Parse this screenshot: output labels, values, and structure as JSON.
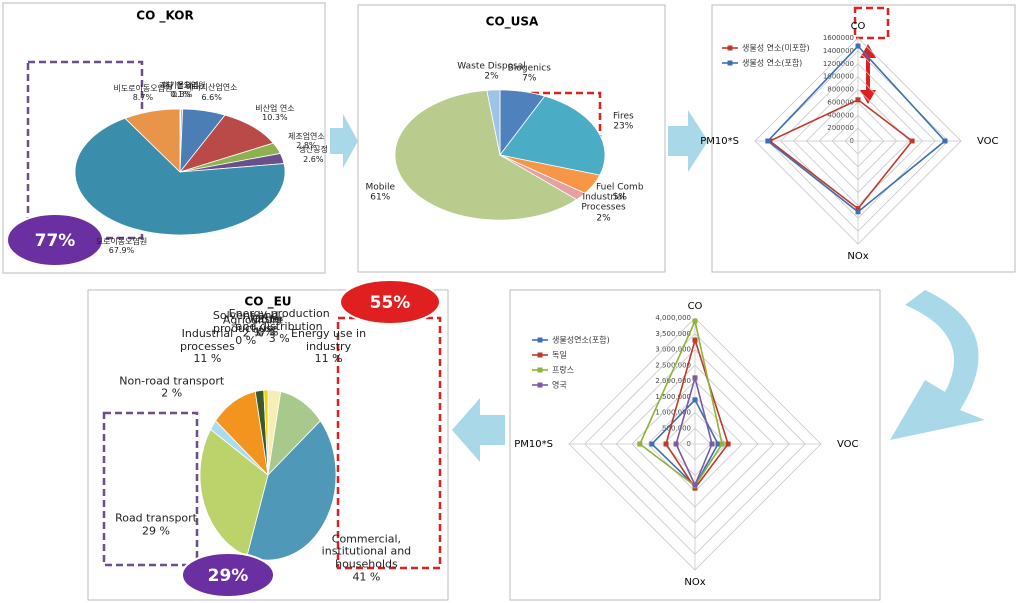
{
  "chart_data": [
    {
      "type": "pie",
      "title": "CO _KOR",
      "categories": [
        "폐기물처리",
        "기타 면오염원",
        "에너지산업연소",
        "비산업 연소",
        "제조업연소",
        "생산공정",
        "도로이동오염원",
        "비도로이동오염원"
      ],
      "values": [
        0.1,
        0.3,
        6.6,
        10.3,
        2.8,
        2.6,
        67.9,
        8.7
      ],
      "value_labels": [
        "0.1%",
        "0.3%",
        "6.6%",
        "10.3%",
        "2.8%",
        "2.6%",
        "67.9%",
        "8.7%"
      ],
      "colors": [
        "#9db9d9",
        "#c8a8cc",
        "#4a7eb5",
        "#b94a48",
        "#8fb050",
        "#6a4f8a",
        "#3b8eab",
        "#e8954a"
      ],
      "annotations": [
        "77%"
      ]
    },
    {
      "type": "pie",
      "title": "CO_USA",
      "categories": [
        "Biogenics",
        "Fires",
        "Fuel Comb",
        "Industrial Processes",
        "Mobile",
        "Waste Disposal"
      ],
      "values": [
        7,
        23,
        5,
        2,
        61,
        2
      ],
      "value_labels": [
        "7%",
        "23%",
        "5%",
        "2%",
        "61%",
        "2%"
      ],
      "colors": [
        "#4f81bd",
        "#4bacc6",
        "#f79646",
        "#e6a0a0",
        "#b9cc8e",
        "#9dc3e6"
      ]
    },
    {
      "type": "radar",
      "categories": [
        "CO",
        "VOC",
        "NOx",
        "PM10*S"
      ],
      "rlim": [
        0,
        1600000
      ],
      "rticks": [
        0,
        200000,
        400000,
        600000,
        800000,
        1000000,
        1200000,
        1400000,
        1600000
      ],
      "series": [
        {
          "name": "생물성 연소(미포함)",
          "color": "#c0392b",
          "values": [
            640000,
            840000,
            1050000,
            1370000
          ]
        },
        {
          "name": "생물성 연소(포함)",
          "color": "#3e6fb5",
          "values": [
            1475000,
            1350000,
            1100000,
            1400000
          ]
        }
      ]
    },
    {
      "type": "pie",
      "title": "CO _EU",
      "categories": [
        "Other",
        "Energy production and distribution",
        "Energy use in industry",
        "Commercial, institutional and households",
        "Road transport",
        "Non-road transport",
        "Industrial processes",
        "Solvent and product use",
        "Agriculture",
        "Waste"
      ],
      "values": [
        0,
        3,
        11,
        41,
        29,
        2,
        11,
        0,
        2,
        1
      ],
      "value_labels": [
        "0 %",
        "3 %",
        "11 %",
        "41 %",
        "29 %",
        "2 %",
        "11 %",
        "0 %",
        "2 %",
        "1 %"
      ],
      "colors": [
        "#ffffff",
        "#f6eeb4",
        "#a9c88c",
        "#4f98b8",
        "#bcd26a",
        "#a8dcef",
        "#f2941e",
        "#dddddd",
        "#3d5a2a",
        "#f5d400"
      ],
      "annotations": [
        "55%",
        "29%"
      ]
    },
    {
      "type": "radar",
      "categories": [
        "CO",
        "VOC",
        "NOx",
        "PM10*S"
      ],
      "rlim": [
        0,
        4000000
      ],
      "rticks": [
        0,
        {
          "value": 500000,
          "label": "500,000"
        },
        {
          "value": 1000000,
          "label": "1,000,000"
        },
        {
          "value": 1500000,
          "label": "1,500,000"
        },
        {
          "value": 2000000,
          "label": "2,000,000"
        },
        {
          "value": 2500000,
          "label": "2,500,000"
        },
        {
          "value": 3000000,
          "label": "3,000,000"
        },
        {
          "value": 3500000,
          "label": "3,500,000"
        },
        {
          "value": 4000000,
          "label": "4,000,000"
        }
      ],
      "series": [
        {
          "name": "생물성연소(포함)",
          "color": "#3e6fb5",
          "values": [
            1400000,
            730000,
            1330000,
            1370000
          ]
        },
        {
          "name": "독일",
          "color": "#c0392b",
          "values": [
            3300000,
            1050000,
            1400000,
            920000
          ]
        },
        {
          "name": "프랑스",
          "color": "#8db33a",
          "values": [
            3900000,
            860000,
            1330000,
            1750000
          ]
        },
        {
          "name": "영국",
          "color": "#7d5aa6",
          "values": [
            2100000,
            540000,
            1300000,
            600000
          ]
        }
      ]
    }
  ]
}
